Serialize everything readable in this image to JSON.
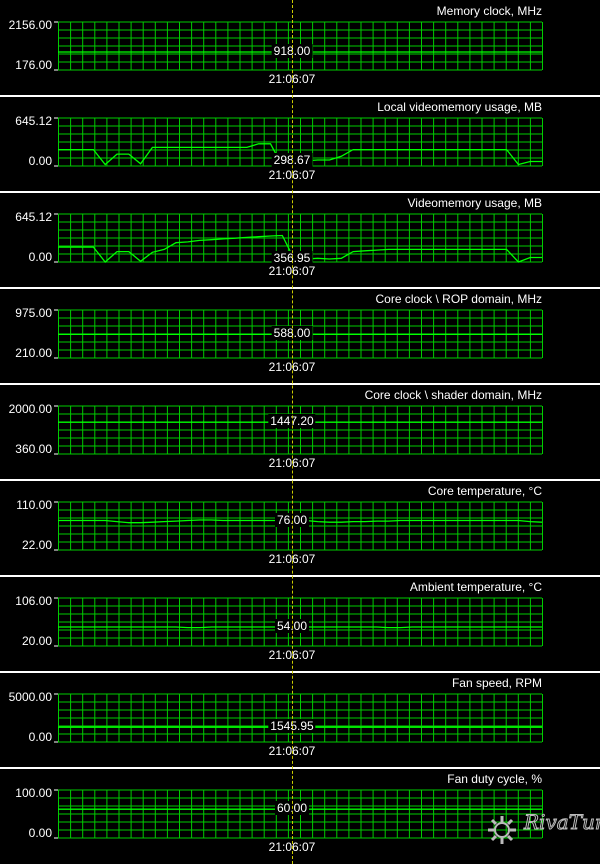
{
  "cursor_time": "21:06:07",
  "colors": {
    "grid": "#00cc00",
    "line": "#00ff00",
    "cursor": "#cccc00",
    "separator": "#ffffff"
  },
  "logo_text": "RivaTuner",
  "panels": [
    {
      "title": "Memory clock, MHz",
      "ymax": "2156.00",
      "ymin": "176.00",
      "cursor_value": "918.00"
    },
    {
      "title": "Local videomemory usage, MB",
      "ymax": "645.12",
      "ymin": "0.00",
      "cursor_value": "298.67"
    },
    {
      "title": "Videomemory usage, MB",
      "ymax": "645.12",
      "ymin": "0.00",
      "cursor_value": "356.95"
    },
    {
      "title": "Core clock \\ ROP domain, MHz",
      "ymax": "975.00",
      "ymin": "210.00",
      "cursor_value": "588.00"
    },
    {
      "title": "Core clock \\ shader domain, MHz",
      "ymax": "2000.00",
      "ymin": "360.00",
      "cursor_value": "1447.20"
    },
    {
      "title": "Core temperature, °C",
      "ymax": "110.00",
      "ymin": "22.00",
      "cursor_value": "76.00"
    },
    {
      "title": "Ambient temperature, °C",
      "ymax": "106.00",
      "ymin": "20.00",
      "cursor_value": "54.00"
    },
    {
      "title": "Fan speed, RPM",
      "ymax": "5000.00",
      "ymin": "0.00",
      "cursor_value": "1545.95"
    },
    {
      "title": "Fan duty cycle, %",
      "ymax": "100.00",
      "ymin": "0.00",
      "cursor_value": "60.00"
    }
  ],
  "chart_data": [
    {
      "type": "line",
      "title": "Memory clock, MHz",
      "ylim": [
        176,
        2156
      ],
      "series": [
        {
          "values": [
            918,
            918,
            918,
            918,
            918,
            918,
            918,
            918,
            918,
            918
          ]
        }
      ]
    },
    {
      "type": "line",
      "title": "Local videomemory usage, MB",
      "ylim": [
        0,
        645.12
      ],
      "series": [
        {
          "values": [
            220,
            220,
            220,
            220,
            20,
            160,
            160,
            30,
            250,
            250,
            250,
            250,
            250,
            250,
            250,
            250,
            250,
            298,
            298,
            0,
            70,
            70,
            80,
            80,
            130,
            220,
            220,
            220,
            220,
            220,
            220,
            220,
            220,
            220,
            220,
            220,
            220,
            220,
            220,
            20,
            60,
            60
          ]
        }
      ]
    },
    {
      "type": "line",
      "title": "Videomemory usage, MB",
      "ylim": [
        0,
        645.12
      ],
      "series": [
        {
          "values": [
            200,
            200,
            200,
            200,
            0,
            140,
            140,
            10,
            130,
            170,
            260,
            270,
            290,
            300,
            310,
            320,
            330,
            340,
            350,
            356,
            40,
            40,
            50,
            40,
            50,
            140,
            150,
            160,
            170,
            170,
            170,
            170,
            170,
            170,
            170,
            170,
            170,
            170,
            170,
            0,
            60,
            60
          ]
        }
      ]
    },
    {
      "type": "line",
      "title": "Core clock \\ ROP domain, MHz",
      "ylim": [
        210,
        975
      ],
      "series": [
        {
          "values": [
            588,
            588,
            588,
            588,
            588,
            588,
            588,
            588,
            588,
            588
          ]
        }
      ]
    },
    {
      "type": "line",
      "title": "Core clock \\ shader domain, MHz",
      "ylim": [
        360,
        2000
      ],
      "series": [
        {
          "values": [
            1447.2,
            1447.2,
            1447.2,
            1447.2,
            1447.2,
            1447.2,
            1447.2,
            1447.2,
            1447.2,
            1447.2
          ]
        }
      ]
    },
    {
      "type": "line",
      "title": "Core temperature, °C",
      "ylim": [
        22,
        110
      ],
      "series": [
        {
          "values": [
            76,
            76,
            76,
            76,
            76,
            74,
            72,
            72,
            73,
            74,
            75,
            76,
            77,
            77,
            76,
            76,
            76,
            76,
            76,
            76,
            76,
            76,
            74,
            73,
            73,
            74,
            74,
            75,
            75,
            76,
            76,
            76,
            76,
            76,
            76,
            76,
            76,
            76,
            76,
            76,
            74,
            73
          ]
        }
      ]
    },
    {
      "type": "line",
      "title": "Ambient temperature, °C",
      "ylim": [
        20,
        106
      ],
      "series": [
        {
          "values": [
            54,
            54,
            54,
            54,
            54,
            54,
            54,
            54,
            54,
            54,
            54,
            53,
            53,
            54,
            54,
            54,
            54,
            54,
            54,
            54,
            54,
            54,
            54,
            54,
            54,
            54,
            54,
            54,
            53,
            53,
            54,
            54,
            54,
            54,
            54,
            54,
            54,
            54,
            54,
            54,
            54,
            54
          ]
        }
      ]
    },
    {
      "type": "line",
      "title": "Fan speed, RPM",
      "ylim": [
        0,
        5000
      ],
      "series": [
        {
          "values": [
            1545.95,
            1545.95,
            1545.95,
            1545.95,
            1545.95,
            1545.95,
            1545.95,
            1545.95,
            1545.95,
            1545.95
          ]
        }
      ]
    },
    {
      "type": "line",
      "title": "Fan duty cycle, %",
      "ylim": [
        0,
        100
      ],
      "series": [
        {
          "values": [
            60,
            60,
            60,
            60,
            60,
            60,
            60,
            60,
            60,
            60
          ]
        }
      ]
    }
  ]
}
